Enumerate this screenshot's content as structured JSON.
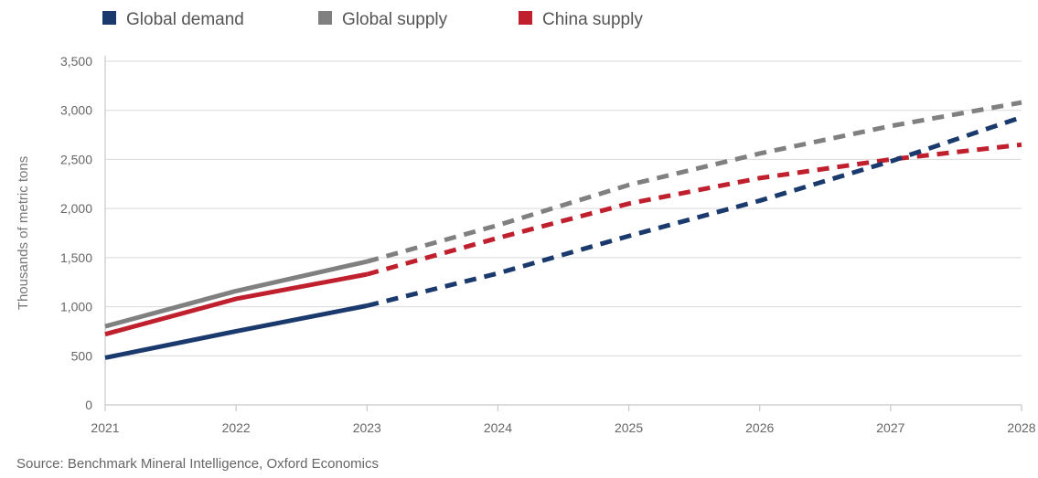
{
  "chart_data": {
    "type": "line",
    "x": [
      2021,
      2022,
      2023,
      2024,
      2025,
      2026,
      2027,
      2028
    ],
    "x_tick_labels": [
      "2021",
      "2022",
      "2023",
      "2024",
      "2025",
      "2026",
      "2027",
      "2028"
    ],
    "ylim": [
      0,
      3500
    ],
    "y_ticks": [
      0,
      500,
      1000,
      1500,
      2000,
      2500,
      3000,
      3500
    ],
    "y_tick_labels": [
      "0",
      "500",
      "1,000",
      "1,500",
      "2,000",
      "2,500",
      "3,000",
      "3,500"
    ],
    "ylabel": "Thousands of metric tons",
    "xlabel": "",
    "title": "",
    "grid": "horizontal",
    "legend_position": "top-left",
    "actual_through": 2023,
    "projected_style": "dashed",
    "series": [
      {
        "name": "Global demand",
        "color": "#1a3a6e",
        "values": [
          480,
          750,
          1010,
          1340,
          1720,
          2080,
          2480,
          2930
        ]
      },
      {
        "name": "Global supply",
        "color": "#808080",
        "values": [
          800,
          1160,
          1460,
          1830,
          2240,
          2560,
          2840,
          3080
        ]
      },
      {
        "name": "China supply",
        "color": "#c0202e",
        "values": [
          720,
          1080,
          1330,
          1700,
          2050,
          2310,
          2500,
          2650
        ]
      }
    ],
    "source": "Source: Benchmark Mineral Intelligence, Oxford Economics"
  }
}
